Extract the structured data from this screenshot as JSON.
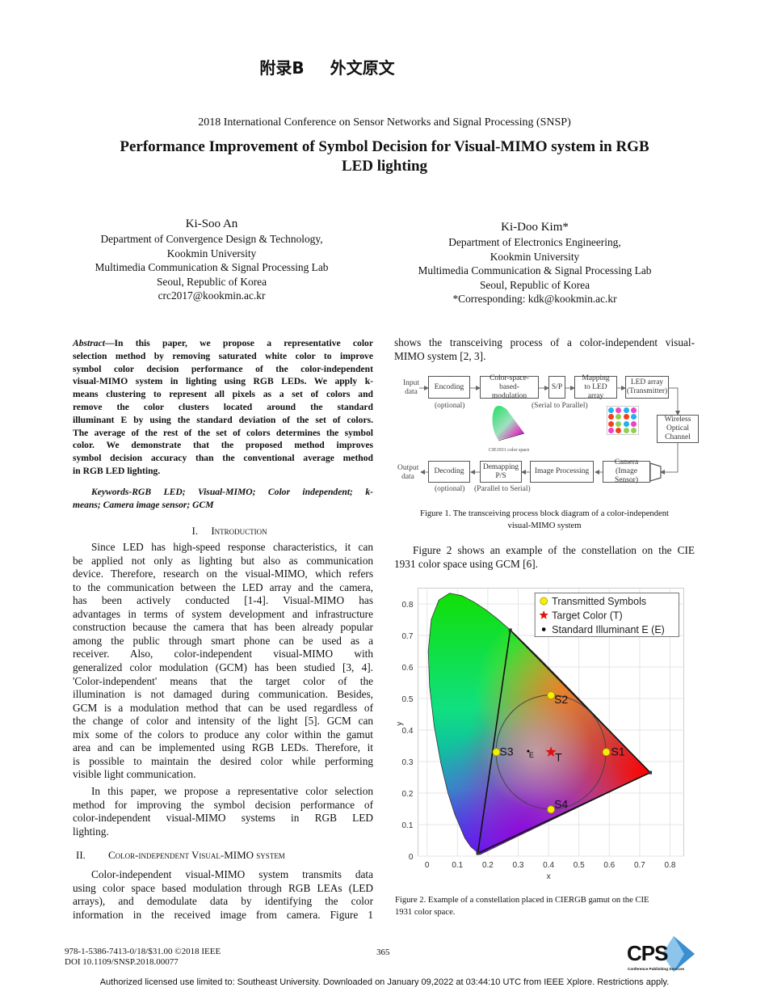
{
  "appendix": {
    "label": "附录B",
    "title": "外文原文"
  },
  "conference": "2018 International Conference on Sensor Networks and Signal Processing (SNSP)",
  "title_lines": [
    "Performance Improvement of Symbol Decision for Visual-MIMO system in RGB",
    "LED lighting"
  ],
  "authors": [
    {
      "name": "Ki-Soo An",
      "lines": [
        "Department of Convergence Design & Technology,",
        "Kookmin University",
        "Multimedia Communication & Signal Processing Lab",
        "Seoul, Republic of Korea",
        "crc2017@kookmin.ac.kr"
      ]
    },
    {
      "name": "Ki-Doo Kim*",
      "lines": [
        "Department of Electronics Engineering,",
        "Kookmin University",
        "Multimedia Communication & Signal Processing Lab",
        "Seoul, Republic of Korea",
        "*Corresponding: kdk@kookmin.ac.kr"
      ]
    }
  ],
  "abstract": {
    "label": "Abstract",
    "lines": [
      "—In this paper, we propose a representative color",
      "selection method by removing saturated white color to improve",
      "symbol color decision performance of the color-independent",
      "visual-MIMO system in lighting using RGB LEDs.  We apply k-",
      "means clustering to represent all pixels as a set of colors and",
      "remove the color clusters located around the standard",
      "illuminant E by using the standard deviation of the set of colors.",
      "The average of the rest of the set of colors determines the symbol",
      "color. We demonstrate that the proposed method improves",
      "symbol decision accuracy than the conventional average method",
      "in RGB LED lighting."
    ]
  },
  "keywords": {
    "lines": [
      "Keywords-RGB LED; Visual-MIMO; Color independent; k-",
      "means; Camera image sensor; GCM"
    ]
  },
  "sections": [
    {
      "number": "I.",
      "title": "Introduction"
    },
    {
      "number": "II.",
      "title": "Color-independent Visual-MIMO system"
    }
  ],
  "paragraphs": {
    "intro1": [
      "Since LED has high-speed response characteristics, it can",
      "be applied not only as lighting but also as communication",
      "device. Therefore, research on the visual-MIMO, which refers",
      "to the communication between the LED array and the camera,",
      "has been actively conducted [1-4]. Visual-MIMO has",
      "advantages in terms of system development and infrastructure",
      "construction because the camera that has been already popular",
      "among the public through smart phone can be used as a",
      "receiver. Also, color-independent visual-MIMO with",
      "generalized color modulation (GCM) has been studied [3, 4].",
      "'Color-independent' means that the target color of the",
      "illumination is not damaged during communication. Besides,",
      "GCM is a modulation method that can be used regardless of",
      "the change of color and intensity of the light [5]. GCM can",
      "mix some of the colors to produce any color within the gamut",
      "area and can be implemented using RGB LEDs. Therefore, it",
      "is possible to maintain the desired color while performing",
      "visible light communication."
    ],
    "intro2": [
      "In this paper, we propose a representative color selection",
      "method for improving the symbol decision performance of",
      "color-independent visual-MIMO systems in RGB LED",
      "lighting."
    ],
    "system1": [
      "Color-independent visual-MIMO system transmits data",
      "using color space based modulation through RGB LEAs (LED",
      "arrays), and demodulate data by identifying the color",
      "information in the received image from camera. Figure 1"
    ],
    "right1": [
      "shows the transceiving process of a color-independent visual-",
      "MIMO system [2, 3]."
    ],
    "right2": [
      "Figure 2 shows an example of the constellation on the CIE",
      "1931 color space using GCM [6]."
    ]
  },
  "figure1": {
    "caption_lines": [
      "Figure 1. The transceiving process block diagram of a color-independent",
      "visual-MIMO system"
    ],
    "input": "Input data",
    "output": "Output data",
    "blocks": {
      "encoding": "Encoding",
      "modulation": "Color-space-based-modulation",
      "sp": "S/P",
      "mapping": "Mapping to LED array",
      "led_array": "LED array (Transmitter)",
      "channel": "Wireless Optical Channel",
      "camera": "Camera (Image Sensor)",
      "image_processing": "Image Processing",
      "demapping": "Demapping P/S",
      "decoding": "Decoding"
    },
    "notes": {
      "encoding_optional": "(optional)",
      "serial_to_parallel": "(Serial to Parallel)",
      "decoding_optional": "(optional)",
      "parallel_to_serial": "(Parallel to Serial)",
      "cie_label": "CIE1931 color space"
    },
    "led_grid_colors": [
      [
        "#22b0f0",
        "#f040c8",
        "#22b0f0",
        "#f040c8"
      ],
      [
        "#f04020",
        "#90d050",
        "#f04020",
        "#22b0f0"
      ],
      [
        "#f04020",
        "#90d050",
        "#22b0f0",
        "#f040c8"
      ],
      [
        "#f040c8",
        "#f04020",
        "#90d050",
        "#90d050"
      ]
    ]
  },
  "figure2": {
    "caption_lines": [
      "Figure 2. Example of a constellation placed in CIERGB gamut on the CIE",
      "1931 color space."
    ]
  },
  "chart_data": {
    "type": "scatter",
    "xlabel": "x",
    "ylabel": "y",
    "xlim": [
      -0.03,
      0.845
    ],
    "ylim": [
      0,
      0.85
    ],
    "xticks": [
      "0",
      "0.1",
      "0.2",
      "0.3",
      "0.4",
      "0.5",
      "0.6",
      "0.7",
      "0.8"
    ],
    "yticks": [
      "0",
      "0.1",
      "0.2",
      "0.3",
      "0.4",
      "0.5",
      "0.6",
      "0.7",
      "0.8"
    ],
    "grid": true,
    "legend_position": "top-right",
    "legend": [
      {
        "label": "Transmitted Symbols",
        "marker": "circle",
        "color": "#f5f000"
      },
      {
        "label": "Target Color (T)",
        "marker": "star",
        "color": "#e01010"
      },
      {
        "label": "Standard Illuminant E (E)",
        "marker": "dot",
        "color": "#000000"
      }
    ],
    "gamut_triangle": [
      [
        0.735,
        0.265
      ],
      [
        0.274,
        0.717
      ],
      [
        0.167,
        0.009
      ]
    ],
    "symbols": [
      {
        "label": "S1",
        "x": 0.59,
        "y": 0.33
      },
      {
        "label": "S2",
        "x": 0.408,
        "y": 0.51
      },
      {
        "label": "S3",
        "x": 0.228,
        "y": 0.33
      },
      {
        "label": "S4",
        "x": 0.408,
        "y": 0.148
      }
    ],
    "target": {
      "label": "T",
      "x": 0.408,
      "y": 0.33
    },
    "illuminant": {
      "label": "E",
      "x": 0.333,
      "y": 0.333
    },
    "circle_radius": 0.181
  },
  "footer": {
    "isbn": "978-1-5386-7413-0/18/$31.00 ©2018 IEEE",
    "doi": "DOI 10.1109/SNSP.2018.00077",
    "page": "365",
    "logo_text": "CPS",
    "logo_sub": "Conference Publishing Services",
    "authorized": "Authorized licensed use limited to: Southeast University. Downloaded on January 09,2022 at 03:44:10 UTC from IEEE Xplore. Restrictions apply."
  }
}
